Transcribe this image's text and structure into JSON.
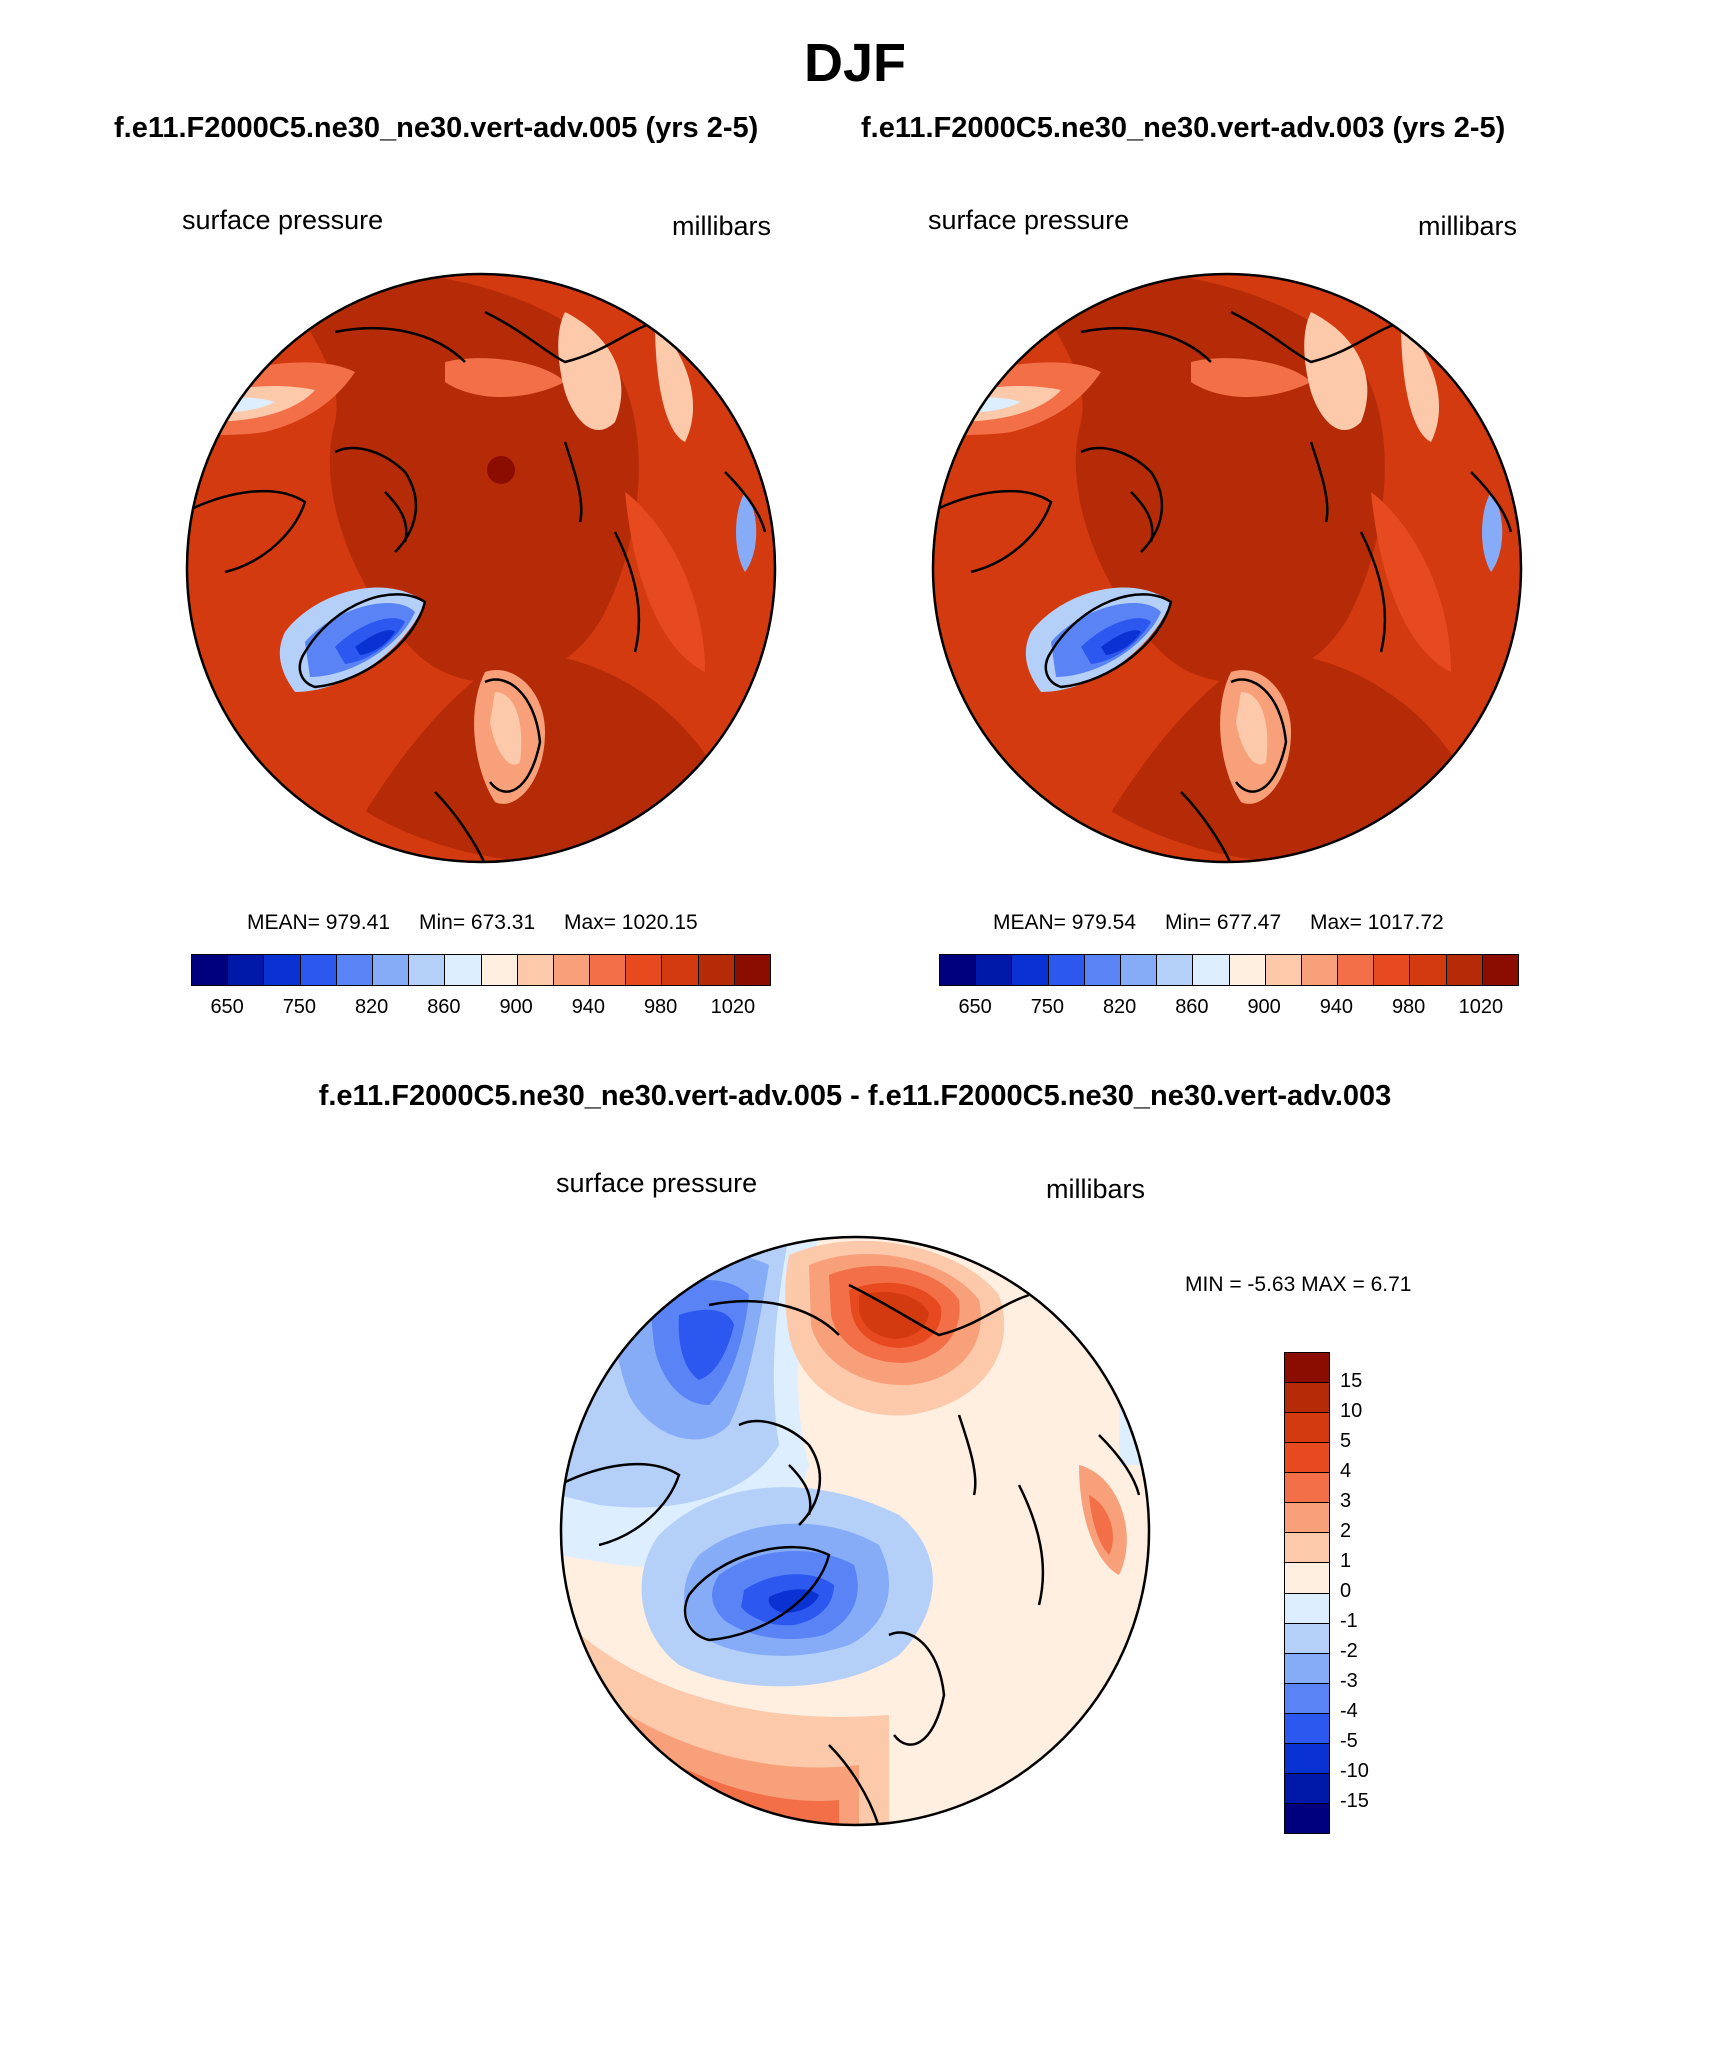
{
  "title": "DJF",
  "case_a": {
    "title": "f.e11.F2000C5.ne30_ne30.vert-adv.005 (yrs 2-5)",
    "left_label": "surface pressure",
    "right_label": "millibars",
    "mean": "MEAN= 979.41",
    "min": "Min= 673.31",
    "max": "Max= 1020.15"
  },
  "case_b": {
    "title": "f.e11.F2000C5.ne30_ne30.vert-adv.003 (yrs 2-5)",
    "left_label": "surface pressure",
    "right_label": "millibars",
    "mean": "MEAN= 979.54",
    "min": "Min= 677.47",
    "max": "Max= 1017.72"
  },
  "diff": {
    "title": "f.e11.F2000C5.ne30_ne30.vert-adv.005 - f.e11.F2000C5.ne30_ne30.vert-adv.003",
    "left_label": "surface pressure",
    "right_label": "millibars",
    "minmax": "MIN =  -5.63 MAX =   6.71"
  },
  "abs_colorbar": {
    "colors": [
      "#00007f",
      "#0018a8",
      "#0a32d2",
      "#2c58f0",
      "#5a84f5",
      "#86acf7",
      "#b4cff8",
      "#dceeff",
      "#ffefe0",
      "#fcc9aa",
      "#f8a07a",
      "#f36f48",
      "#e84a1f",
      "#d43a10",
      "#b52b08",
      "#8a0d00"
    ],
    "tick_labels": [
      "650",
      "750",
      "820",
      "860",
      "900",
      "940",
      "980",
      "1020"
    ]
  },
  "diff_colorbar": {
    "colors": [
      "#8a0d00",
      "#b52b08",
      "#d43a10",
      "#e84a1f",
      "#f36f48",
      "#f8a07a",
      "#fcc9aa",
      "#ffefe0",
      "#dceeff",
      "#b4cff8",
      "#86acf7",
      "#5a84f5",
      "#2c58f0",
      "#0a32d2",
      "#0018a8",
      "#00007f"
    ],
    "tick_labels": [
      "15",
      "10",
      "5",
      "4",
      "3",
      "2",
      "1",
      "0",
      "-1",
      "-2",
      "-3",
      "-4",
      "-5",
      "-10",
      "-15"
    ]
  }
}
